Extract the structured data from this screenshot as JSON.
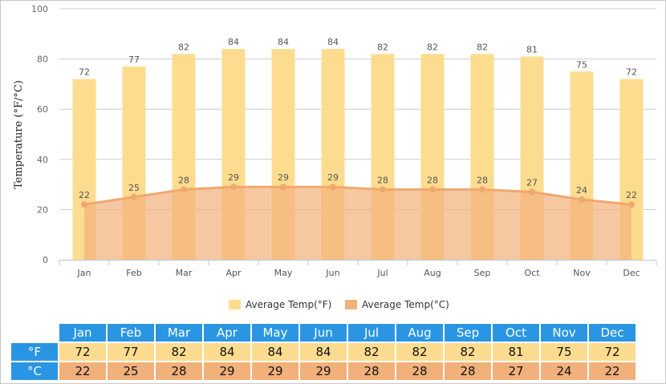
{
  "chart_data": {
    "type": "bar+area",
    "ylabel": "Temperature (°F/°C)",
    "ylim": [
      0,
      100
    ],
    "yticks": [
      0,
      20,
      40,
      60,
      80,
      100
    ],
    "grid": true,
    "legend_position": "bottom-center",
    "categories": [
      "Jan",
      "Feb",
      "Mar",
      "Apr",
      "May",
      "Jun",
      "Jul",
      "Aug",
      "Sep",
      "Oct",
      "Nov",
      "Dec"
    ],
    "series": [
      {
        "name": "Average Temp(°F)",
        "type": "bar",
        "color": "#fddc8f",
        "values": [
          72,
          77,
          82,
          84,
          84,
          84,
          82,
          82,
          82,
          81,
          75,
          72
        ]
      },
      {
        "name": "Average Temp(°C)",
        "type": "area",
        "color": "#f2b07b",
        "values": [
          22,
          25,
          28,
          29,
          29,
          29,
          28,
          28,
          28,
          27,
          24,
          22
        ]
      }
    ]
  },
  "table": {
    "row_f": "°F",
    "row_c": "°C"
  }
}
